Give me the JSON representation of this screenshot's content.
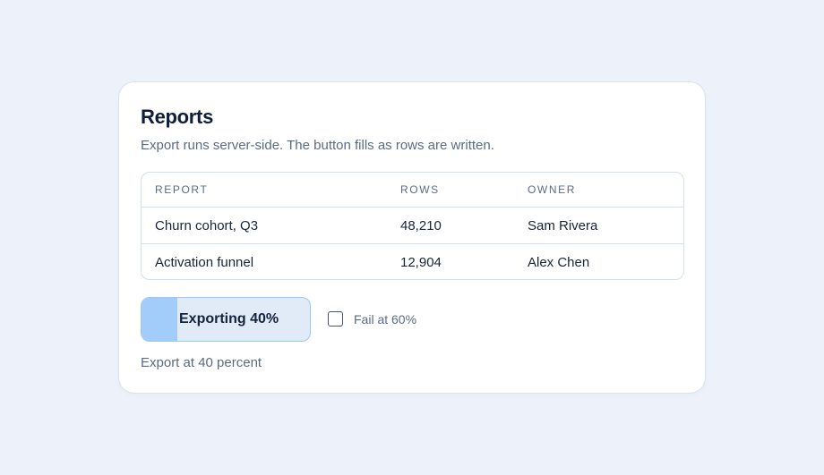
{
  "title": "Reports",
  "subtitle": "Export runs server-side. The button fills as rows are written.",
  "table": {
    "columns": [
      "REPORT",
      "ROWS",
      "OWNER"
    ],
    "rows": [
      {
        "report": "Churn cohort, Q3",
        "rows": "48,210",
        "owner": "Sam Rivera"
      },
      {
        "report": "Activation funnel",
        "rows": "12,904",
        "owner": "Alex Chen"
      }
    ]
  },
  "export": {
    "label": "Exporting 40%",
    "progress_percent": 40,
    "status": "Export at 40 percent"
  },
  "fail_option": {
    "label": "Fail at 60%",
    "checked": false
  },
  "colors": {
    "background": "#edf2fa",
    "progress_fill": "#a2cdfa",
    "button_track": "#e1ebf8",
    "button_border": "#9cc8f5",
    "title": "#0f1f3a",
    "muted_text": "#5b6b85"
  }
}
